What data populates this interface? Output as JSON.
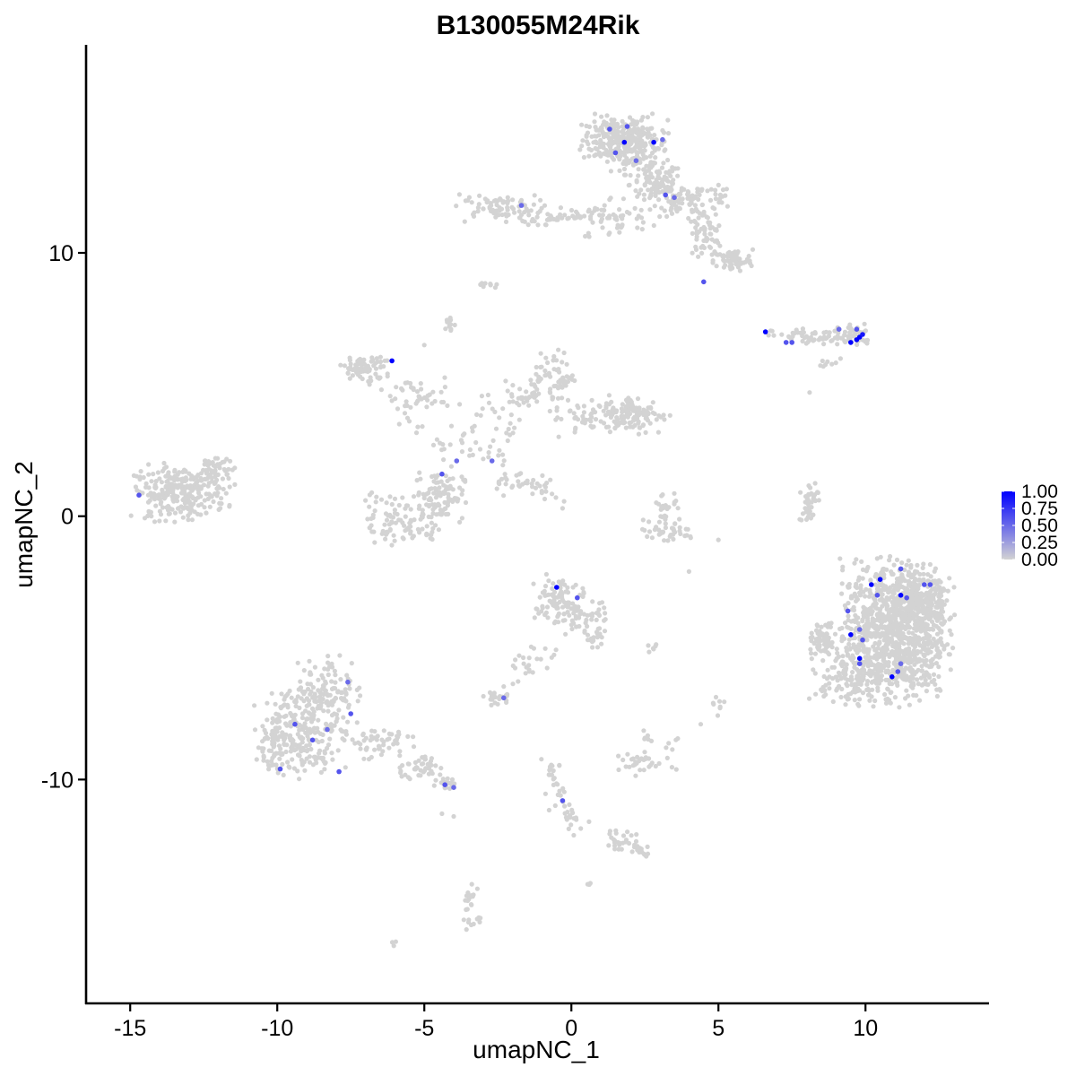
{
  "chart_data": {
    "type": "scatter",
    "title": "B130055M24Rik",
    "xlabel": "umapNC_1",
    "ylabel": "umapNC_2",
    "xlim": [
      -16.5,
      14.2
    ],
    "ylim": [
      -18.5,
      17.9
    ],
    "x_ticks": [
      -15,
      -10,
      -5,
      0,
      5,
      10
    ],
    "x_tick_labels": [
      "-15",
      "-10",
      "-5",
      "0",
      "5",
      "10"
    ],
    "y_ticks": [
      -10,
      0,
      10
    ],
    "y_tick_labels": [
      "-10",
      "0",
      "10"
    ],
    "grid": false,
    "legend": {
      "placement": "right",
      "type": "colorbar",
      "min": 0,
      "max": 1,
      "ticks": [
        0,
        0.25,
        0.5,
        0.75,
        1
      ],
      "tick_labels": [
        "0.00",
        "0.25",
        "0.50",
        "0.75",
        "1.00"
      ],
      "low_color": "#d3d3d3",
      "high_color": "#0000ff"
    },
    "background_color": "#d3d3d3",
    "clusters": [
      {
        "cx": 1.4,
        "cy": 14.3,
        "rx": 0.85,
        "ry": 0.75,
        "n": 180
      },
      {
        "cx": 2.3,
        "cy": 14.1,
        "rx": 0.8,
        "ry": 0.9,
        "n": 150
      },
      {
        "cx": 2.9,
        "cy": 12.6,
        "rx": 0.75,
        "ry": 0.65,
        "n": 90
      },
      {
        "cx": 4.2,
        "cy": 12.0,
        "rx": 1.2,
        "ry": 0.5,
        "n": 90
      },
      {
        "cx": 4.5,
        "cy": 10.7,
        "rx": 0.55,
        "ry": 0.7,
        "n": 60
      },
      {
        "cx": 5.5,
        "cy": 9.7,
        "rx": 0.55,
        "ry": 0.35,
        "n": 70
      },
      {
        "cx": 1.4,
        "cy": 11.3,
        "rx": 1.1,
        "ry": 0.7,
        "n": 50
      },
      {
        "cx": 0.2,
        "cy": 11.5,
        "rx": 0.7,
        "ry": 0.25,
        "n": 25
      },
      {
        "cx": -2.5,
        "cy": 11.7,
        "rx": 1.3,
        "ry": 0.45,
        "n": 80
      },
      {
        "cx": -1.1,
        "cy": 11.2,
        "rx": 0.5,
        "ry": 0.15,
        "n": 10
      },
      {
        "cx": -2.8,
        "cy": 8.8,
        "rx": 0.25,
        "ry": 0.15,
        "n": 10
      },
      {
        "cx": 8.4,
        "cy": 6.8,
        "rx": 1.3,
        "ry": 0.28,
        "n": 70
      },
      {
        "cx": 9.7,
        "cy": 6.9,
        "rx": 0.45,
        "ry": 0.4,
        "n": 30
      },
      {
        "cx": 8.8,
        "cy": 5.8,
        "rx": 0.35,
        "ry": 0.15,
        "n": 8
      },
      {
        "cx": -13.3,
        "cy": 0.9,
        "rx": 1.3,
        "ry": 0.85,
        "n": 260
      },
      {
        "cx": -12.1,
        "cy": 1.7,
        "rx": 0.55,
        "ry": 0.6,
        "n": 50
      },
      {
        "cx": -7.0,
        "cy": 5.6,
        "rx": 0.75,
        "ry": 0.45,
        "n": 70
      },
      {
        "cx": -5.3,
        "cy": 4.5,
        "rx": 1.0,
        "ry": 0.7,
        "n": 40
      },
      {
        "cx": -4.1,
        "cy": 7.3,
        "rx": 0.2,
        "ry": 0.35,
        "n": 12
      },
      {
        "cx": -6.2,
        "cy": 0.0,
        "rx": 0.9,
        "ry": 0.8,
        "n": 60
      },
      {
        "cx": -4.5,
        "cy": 0.8,
        "rx": 0.7,
        "ry": 0.8,
        "n": 100
      },
      {
        "cx": -5.4,
        "cy": -0.6,
        "rx": 0.8,
        "ry": 0.45,
        "n": 35
      },
      {
        "cx": -3.1,
        "cy": 3.1,
        "rx": 0.9,
        "ry": 1.2,
        "n": 35
      },
      {
        "cx": -1.7,
        "cy": 4.5,
        "rx": 1.0,
        "ry": 0.5,
        "n": 30
      },
      {
        "cx": -0.6,
        "cy": 5.3,
        "rx": 0.6,
        "ry": 0.8,
        "n": 60
      },
      {
        "cx": 1.2,
        "cy": 3.8,
        "rx": 1.6,
        "ry": 0.6,
        "n": 90
      },
      {
        "cx": 2.2,
        "cy": 3.9,
        "rx": 0.9,
        "ry": 0.55,
        "n": 80
      },
      {
        "cx": -1.7,
        "cy": 1.3,
        "rx": 1.0,
        "ry": 0.4,
        "n": 25
      },
      {
        "cx": 3.2,
        "cy": 0.4,
        "rx": 0.45,
        "ry": 0.5,
        "n": 25
      },
      {
        "cx": 3.2,
        "cy": -0.6,
        "rx": 0.9,
        "ry": 0.35,
        "n": 40
      },
      {
        "cx": 8.1,
        "cy": 0.6,
        "rx": 0.25,
        "ry": 0.7,
        "n": 30
      },
      {
        "cx": 11.0,
        "cy": -4.4,
        "rx": 1.5,
        "ry": 2.2,
        "n": 1000
      },
      {
        "cx": 9.6,
        "cy": -6.0,
        "rx": 1.2,
        "ry": 0.9,
        "n": 150
      },
      {
        "cx": 8.5,
        "cy": -4.7,
        "rx": 0.45,
        "ry": 0.6,
        "n": 60
      },
      {
        "cx": 12.0,
        "cy": -3.2,
        "rx": 0.8,
        "ry": 1.0,
        "n": 200
      },
      {
        "cx": -0.4,
        "cy": -3.3,
        "rx": 0.7,
        "ry": 0.9,
        "n": 100
      },
      {
        "cx": 0.5,
        "cy": -3.9,
        "rx": 0.6,
        "ry": 0.55,
        "n": 40
      },
      {
        "cx": 0.9,
        "cy": -4.6,
        "rx": 0.35,
        "ry": 0.35,
        "n": 15
      },
      {
        "cx": -1.5,
        "cy": -5.5,
        "rx": 0.6,
        "ry": 0.6,
        "n": 15
      },
      {
        "cx": -2.5,
        "cy": -6.9,
        "rx": 0.4,
        "ry": 0.25,
        "n": 20
      },
      {
        "cx": 2.8,
        "cy": -5.0,
        "rx": 0.3,
        "ry": 0.12,
        "n": 6
      },
      {
        "cx": 5.0,
        "cy": -7.3,
        "rx": 0.15,
        "ry": 0.35,
        "n": 8
      },
      {
        "cx": 2.3,
        "cy": -9.4,
        "rx": 0.55,
        "ry": 0.35,
        "n": 30
      },
      {
        "cx": 2.6,
        "cy": -8.3,
        "rx": 0.15,
        "ry": 0.3,
        "n": 6
      },
      {
        "cx": 3.4,
        "cy": -8.9,
        "rx": 0.25,
        "ry": 0.6,
        "n": 8
      },
      {
        "cx": -9.2,
        "cy": -8.2,
        "rx": 1.2,
        "ry": 1.4,
        "n": 230
      },
      {
        "cx": -8.3,
        "cy": -6.8,
        "rx": 0.9,
        "ry": 1.3,
        "n": 130
      },
      {
        "cx": -10.2,
        "cy": -8.7,
        "rx": 0.4,
        "ry": 0.8,
        "n": 40
      },
      {
        "cx": -6.6,
        "cy": -8.6,
        "rx": 1.0,
        "ry": 0.5,
        "n": 50
      },
      {
        "cx": -5.3,
        "cy": -9.6,
        "rx": 0.7,
        "ry": 0.35,
        "n": 35
      },
      {
        "cx": -4.3,
        "cy": -10.2,
        "rx": 0.35,
        "ry": 0.2,
        "n": 20
      },
      {
        "cx": -0.6,
        "cy": -10.2,
        "rx": 0.25,
        "ry": 0.9,
        "n": 20
      },
      {
        "cx": -0.1,
        "cy": -11.4,
        "rx": 0.25,
        "ry": 0.4,
        "n": 12
      },
      {
        "cx": 1.6,
        "cy": -12.3,
        "rx": 0.5,
        "ry": 0.3,
        "n": 20
      },
      {
        "cx": 2.3,
        "cy": -12.7,
        "rx": 0.3,
        "ry": 0.2,
        "n": 12
      },
      {
        "cx": -3.4,
        "cy": -14.6,
        "rx": 0.25,
        "ry": 0.5,
        "n": 15
      },
      {
        "cx": -3.4,
        "cy": -15.4,
        "rx": 0.3,
        "ry": 0.3,
        "n": 10
      },
      {
        "cx": -6.0,
        "cy": -16.2,
        "rx": 0.15,
        "ry": 0.1,
        "n": 3
      },
      {
        "cx": 0.6,
        "cy": -14.0,
        "rx": 0.12,
        "ry": 0.15,
        "n": 3
      }
    ],
    "paths": [
      {
        "from": [
          -5.0,
          3.0
        ],
        "to": [
          -7.5,
          6.0
        ],
        "n": 12
      },
      {
        "from": [
          -2.6,
          1.9
        ],
        "to": [
          -1.1,
          5.6
        ],
        "n": 14
      },
      {
        "from": [
          -2.0,
          1.7
        ],
        "to": [
          -0.2,
          0.5
        ],
        "n": 16
      },
      {
        "from": [
          -4.6,
          3.2
        ],
        "to": [
          -4.2,
          1.7
        ],
        "n": 8
      },
      {
        "from": [
          2.3,
          11.0
        ],
        "to": [
          3.3,
          13.5
        ],
        "n": 12
      },
      {
        "from": [
          -1.4,
          11.6
        ],
        "to": [
          0.5,
          11.1
        ],
        "n": 8
      },
      {
        "from": [
          -4.4,
          -9.5
        ],
        "to": [
          -6.8,
          -8.5
        ],
        "n": 10
      },
      {
        "from": [
          -0.8,
          -9.3
        ],
        "to": [
          0.1,
          -12.2
        ],
        "n": 12
      },
      {
        "from": [
          1.4,
          -12.3
        ],
        "to": [
          2.6,
          -12.8
        ],
        "n": 10
      },
      {
        "from": [
          -0.5,
          -5.0
        ],
        "to": [
          -2.4,
          -6.6
        ],
        "n": 10
      },
      {
        "from": [
          7.9,
          -0.2
        ],
        "to": [
          8.2,
          1.2
        ],
        "n": 8
      }
    ],
    "scattered_points": [
      {
        "x": -0.3,
        "y": 0.3
      },
      {
        "x": 5.0,
        "y": -0.9
      },
      {
        "x": 4.0,
        "y": -2.1
      },
      {
        "x": 8.1,
        "y": 4.7
      },
      {
        "x": -4.0,
        "y": -11.4
      },
      {
        "x": -4.4,
        "y": -11.3
      },
      {
        "x": 0.6,
        "y": -11.6
      },
      {
        "x": 4.4,
        "y": -7.9
      },
      {
        "x": -5.0,
        "y": 6.5
      }
    ],
    "expressing_points": [
      {
        "x": 1.3,
        "y": 14.7,
        "value": 0.6
      },
      {
        "x": 1.8,
        "y": 14.2,
        "value": 1.0
      },
      {
        "x": 1.9,
        "y": 14.8,
        "value": 0.6
      },
      {
        "x": 1.5,
        "y": 13.8,
        "value": 0.6
      },
      {
        "x": 2.2,
        "y": 13.5,
        "value": 0.5
      },
      {
        "x": 2.8,
        "y": 14.2,
        "value": 1.0
      },
      {
        "x": 3.1,
        "y": 14.3,
        "value": 0.5
      },
      {
        "x": 3.2,
        "y": 12.2,
        "value": 0.6
      },
      {
        "x": 3.5,
        "y": 12.1,
        "value": 0.5
      },
      {
        "x": 4.5,
        "y": 8.9,
        "value": 0.6
      },
      {
        "x": -1.7,
        "y": 11.8,
        "value": 0.5
      },
      {
        "x": 6.6,
        "y": 7.0,
        "value": 1.0
      },
      {
        "x": 7.3,
        "y": 6.6,
        "value": 0.6
      },
      {
        "x": 7.5,
        "y": 6.6,
        "value": 0.6
      },
      {
        "x": 9.1,
        "y": 7.1,
        "value": 0.5
      },
      {
        "x": 9.5,
        "y": 6.6,
        "value": 1.0
      },
      {
        "x": 9.7,
        "y": 6.7,
        "value": 1.0
      },
      {
        "x": 9.8,
        "y": 6.8,
        "value": 1.0
      },
      {
        "x": 9.9,
        "y": 6.9,
        "value": 0.9
      },
      {
        "x": 9.7,
        "y": 7.1,
        "value": 0.6
      },
      {
        "x": -6.1,
        "y": 5.9,
        "value": 1.0
      },
      {
        "x": -14.7,
        "y": 0.8,
        "value": 0.6
      },
      {
        "x": -4.4,
        "y": 1.6,
        "value": 0.6
      },
      {
        "x": -3.9,
        "y": 2.1,
        "value": 0.5
      },
      {
        "x": -2.7,
        "y": 2.1,
        "value": 0.5
      },
      {
        "x": -0.5,
        "y": -2.7,
        "value": 1.0
      },
      {
        "x": 0.2,
        "y": -3.1,
        "value": 0.6
      },
      {
        "x": -2.3,
        "y": -6.9,
        "value": 0.5
      },
      {
        "x": 10.2,
        "y": -2.6,
        "value": 1.0
      },
      {
        "x": 10.5,
        "y": -2.4,
        "value": 1.0
      },
      {
        "x": 11.2,
        "y": -2.0,
        "value": 0.6
      },
      {
        "x": 10.4,
        "y": -3.0,
        "value": 0.6
      },
      {
        "x": 11.2,
        "y": -3.0,
        "value": 1.0
      },
      {
        "x": 11.4,
        "y": -3.1,
        "value": 0.6
      },
      {
        "x": 12.0,
        "y": -2.6,
        "value": 0.6
      },
      {
        "x": 12.2,
        "y": -2.6,
        "value": 0.6
      },
      {
        "x": 9.4,
        "y": -3.6,
        "value": 0.6
      },
      {
        "x": 9.5,
        "y": -4.5,
        "value": 1.0
      },
      {
        "x": 9.8,
        "y": -4.3,
        "value": 0.5
      },
      {
        "x": 9.9,
        "y": -4.7,
        "value": 0.6
      },
      {
        "x": 9.8,
        "y": -5.4,
        "value": 1.0
      },
      {
        "x": 9.8,
        "y": -5.6,
        "value": 0.6
      },
      {
        "x": 10.9,
        "y": -6.1,
        "value": 1.0
      },
      {
        "x": 11.1,
        "y": -5.9,
        "value": 0.6
      },
      {
        "x": 11.2,
        "y": -5.6,
        "value": 0.5
      },
      {
        "x": -7.6,
        "y": -6.3,
        "value": 0.5
      },
      {
        "x": -7.5,
        "y": -7.5,
        "value": 0.6
      },
      {
        "x": -9.4,
        "y": -7.9,
        "value": 0.6
      },
      {
        "x": -8.8,
        "y": -8.5,
        "value": 0.6
      },
      {
        "x": -8.3,
        "y": -8.1,
        "value": 0.5
      },
      {
        "x": -9.9,
        "y": -9.6,
        "value": 0.6
      },
      {
        "x": -7.9,
        "y": -9.7,
        "value": 0.6
      },
      {
        "x": -4.3,
        "y": -10.2,
        "value": 0.6
      },
      {
        "x": -4.0,
        "y": -10.3,
        "value": 0.5
      },
      {
        "x": -0.3,
        "y": -10.8,
        "value": 0.6
      }
    ]
  }
}
